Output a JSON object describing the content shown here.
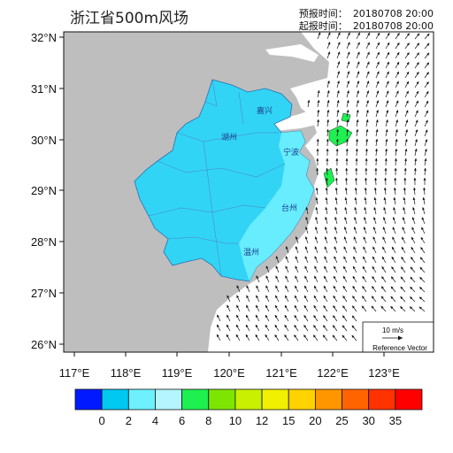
{
  "header": {
    "title": "浙江省500m风场",
    "forecast_label": "预报时间：",
    "forecast_time": "20180708 20:00",
    "issue_label": "起报时间：",
    "issue_time": "20180708 20:00"
  },
  "axes": {
    "y_ticks": [
      "32°N",
      "31°N",
      "30°N",
      "29°N",
      "28°N",
      "27°N",
      "26°N"
    ],
    "x_ticks": [
      "117°E",
      "118°E",
      "119°E",
      "120°E",
      "121°E",
      "122°E",
      "123°E"
    ]
  },
  "reference_vector": {
    "speed_label": "10 m/s",
    "caption": "Reference Vector"
  },
  "colorbar": {
    "colors": [
      "#0019ff",
      "#00c8f0",
      "#6ef0ff",
      "#b4f5ff",
      "#1ef050",
      "#7de600",
      "#c8f000",
      "#f0f000",
      "#ffd200",
      "#ff9600",
      "#ff6400",
      "#ff3200",
      "#ff0000"
    ],
    "labels": [
      "0",
      "2",
      "4",
      "6",
      "8",
      "10",
      "12",
      "15",
      "20",
      "25",
      "30",
      "35"
    ]
  },
  "map": {
    "land_color": "#bebebe",
    "province_fill": "#32d4f5",
    "sea_color": "#ffffff",
    "city_labels": [
      "嘉兴",
      "湖州",
      "宁波",
      "台州",
      "温州"
    ]
  }
}
